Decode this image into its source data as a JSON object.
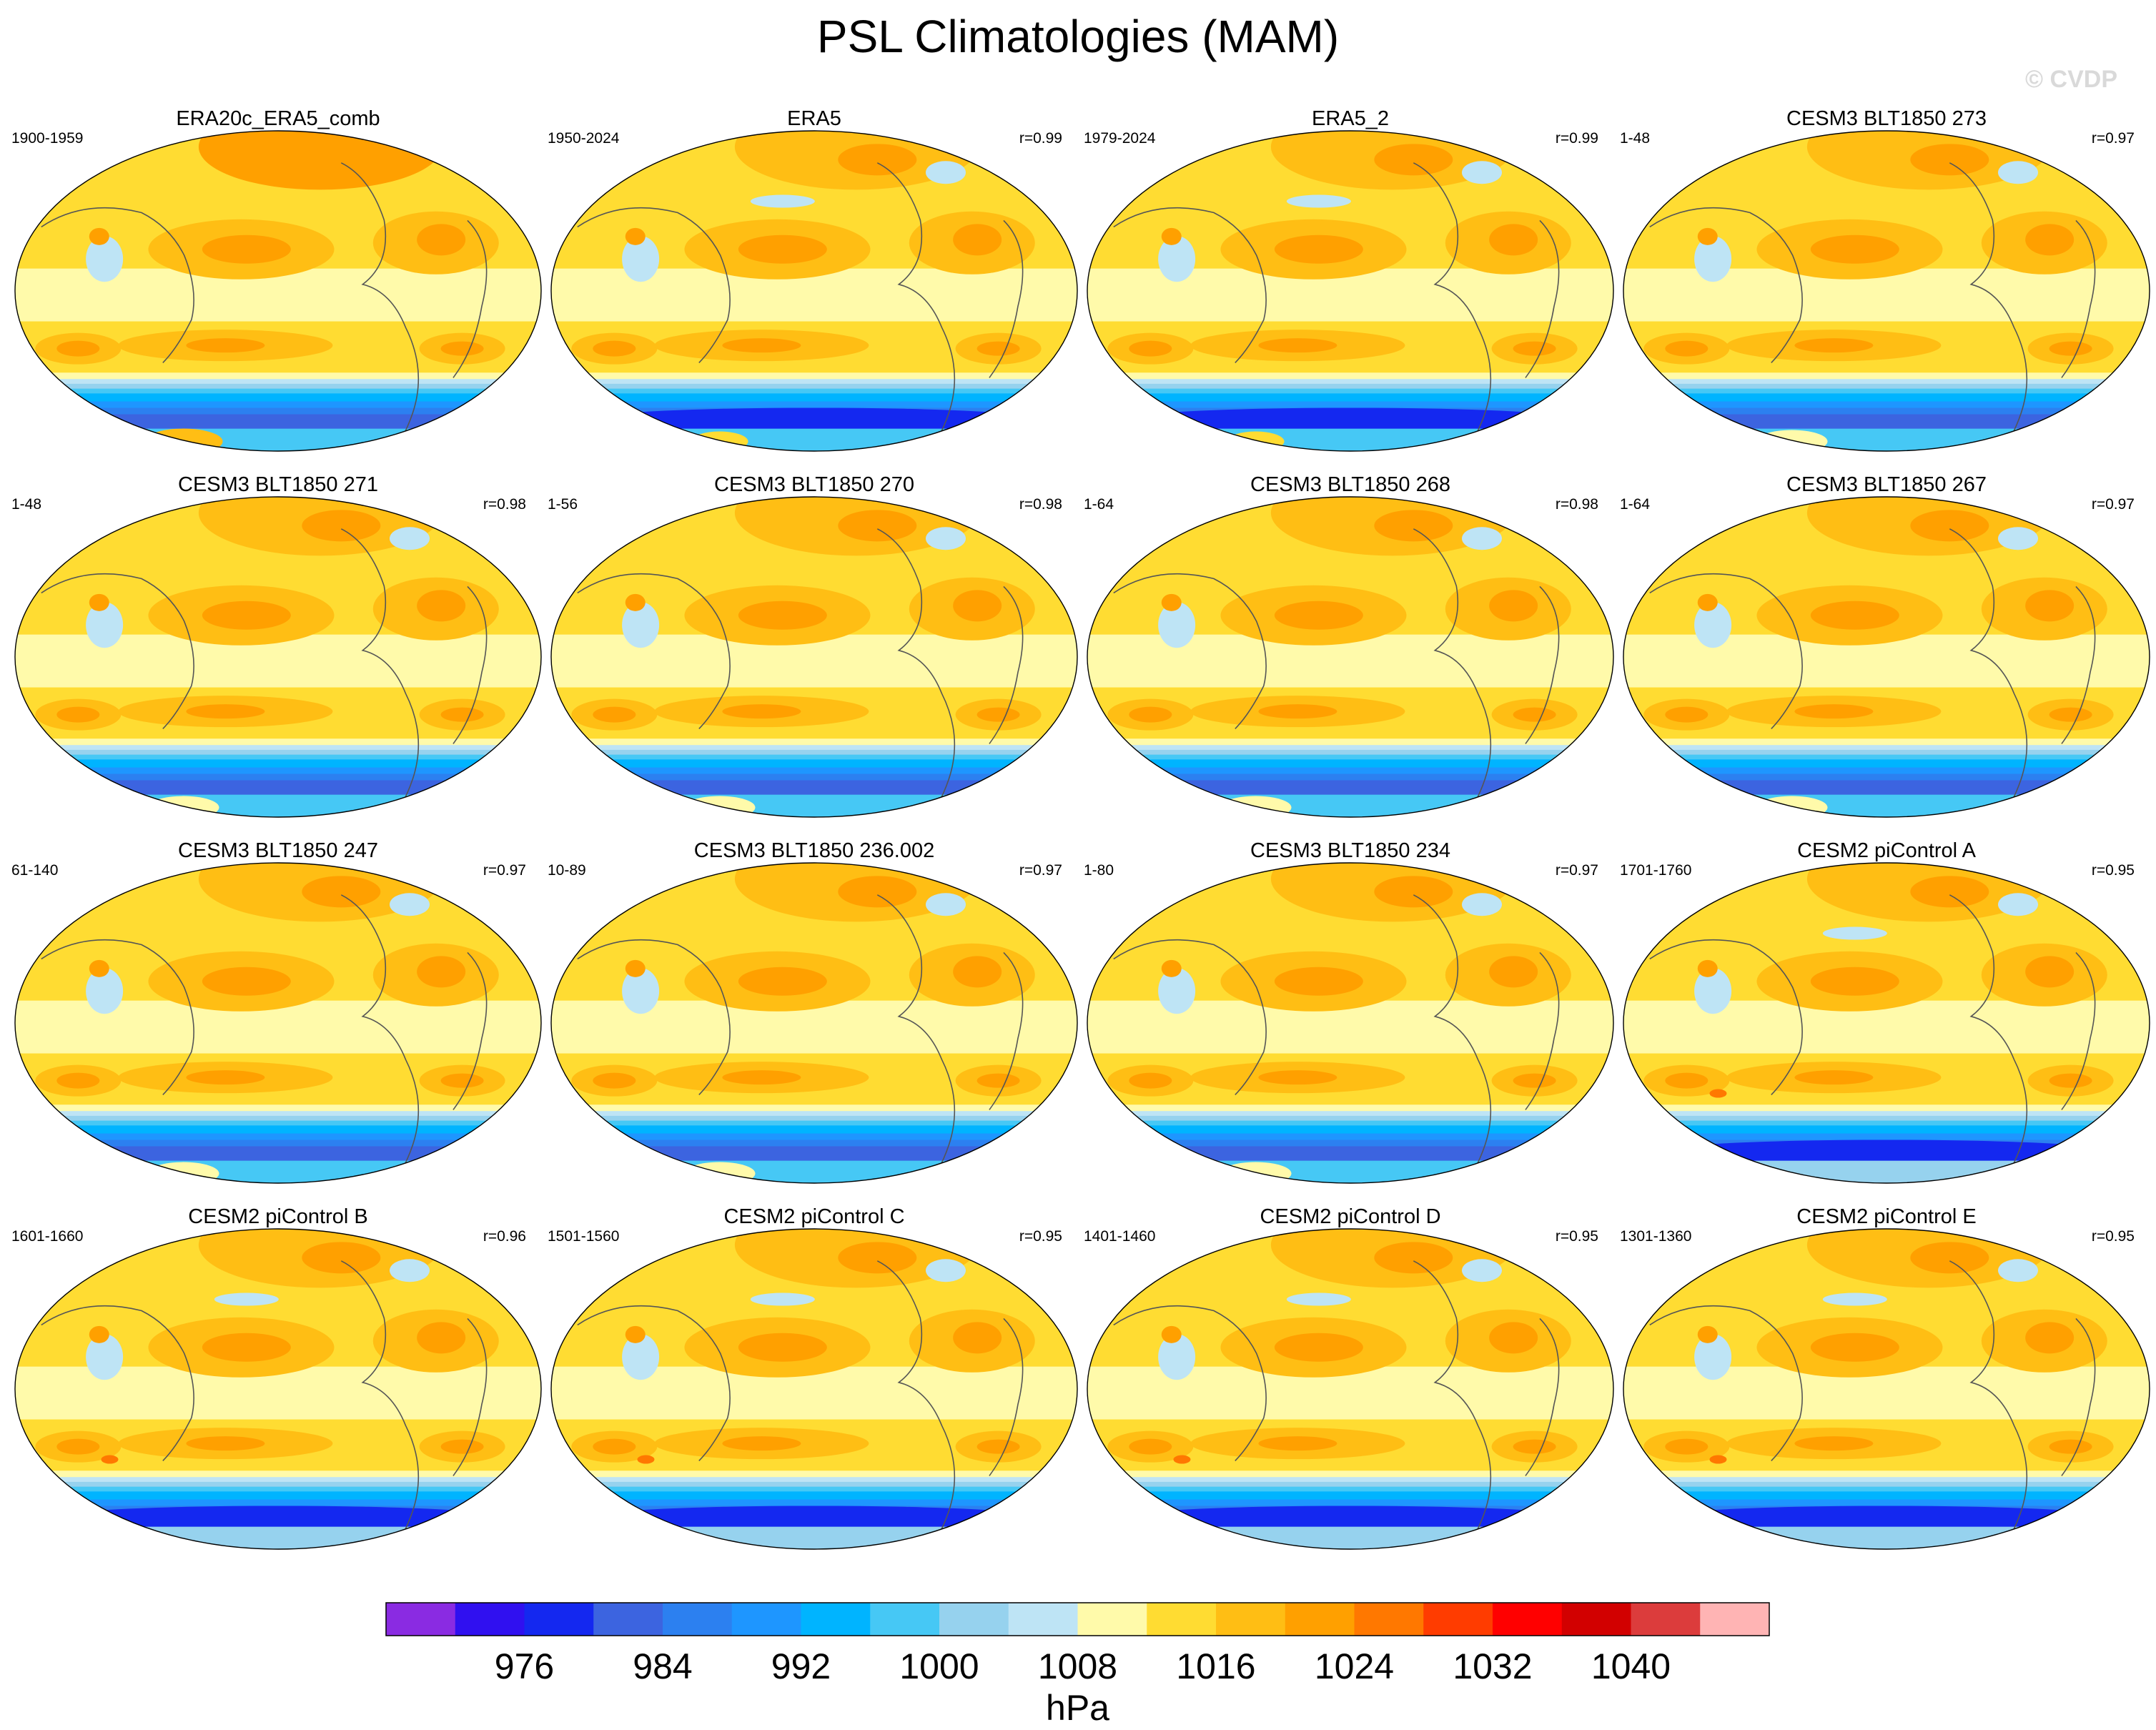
{
  "title": "PSL Climatologies (MAM)",
  "watermark": "© CVDP",
  "chart_data": {
    "type": "map-grid",
    "variable": "PSL",
    "season": "MAM",
    "units": "hPa",
    "panels": [
      {
        "name": "ERA20c_ERA5_comb",
        "years": "1900-1959",
        "r": "",
        "variant": "obs1"
      },
      {
        "name": "ERA5",
        "years": "1950-2024",
        "r": "r=0.99",
        "variant": "obs2"
      },
      {
        "name": "ERA5_2",
        "years": "1979-2024",
        "r": "r=0.99",
        "variant": "obs2"
      },
      {
        "name": "CESM3 BLT1850 273",
        "years": "1-48",
        "r": "r=0.97",
        "variant": "model"
      },
      {
        "name": "CESM3 BLT1850 271",
        "years": "1-48",
        "r": "r=0.98",
        "variant": "model"
      },
      {
        "name": "CESM3 BLT1850 270",
        "years": "1-56",
        "r": "r=0.98",
        "variant": "model"
      },
      {
        "name": "CESM3 BLT1850 268",
        "years": "1-64",
        "r": "r=0.98",
        "variant": "model"
      },
      {
        "name": "CESM3 BLT1850 267",
        "years": "1-64",
        "r": "r=0.97",
        "variant": "model"
      },
      {
        "name": "CESM3 BLT1850 247",
        "years": "61-140",
        "r": "r=0.97",
        "variant": "model"
      },
      {
        "name": "CESM3 BLT1850 236.002",
        "years": "10-89",
        "r": "r=0.97",
        "variant": "model"
      },
      {
        "name": "CESM3 BLT1850 234",
        "years": "1-80",
        "r": "r=0.97",
        "variant": "model"
      },
      {
        "name": "CESM2 piControl A",
        "years": "1701-1760",
        "r": "r=0.95",
        "variant": "cesm2"
      },
      {
        "name": "CESM2 piControl B",
        "years": "1601-1660",
        "r": "r=0.96",
        "variant": "cesm2"
      },
      {
        "name": "CESM2 piControl C",
        "years": "1501-1560",
        "r": "r=0.95",
        "variant": "cesm2"
      },
      {
        "name": "CESM2 piControl D",
        "years": "1401-1460",
        "r": "r=0.95",
        "variant": "cesm2"
      },
      {
        "name": "CESM2 piControl E",
        "years": "1301-1360",
        "r": "r=0.95",
        "variant": "cesm2"
      }
    ],
    "colorbar": {
      "colors": [
        "#8a2be2",
        "#3010f0",
        "#1428f0",
        "#3c64e0",
        "#2c80f0",
        "#1e96ff",
        "#00b4ff",
        "#46c8f5",
        "#96d2ee",
        "#bee4f5",
        "#fffaaa",
        "#ffdc32",
        "#ffbe14",
        "#ffa000",
        "#ff7800",
        "#ff3c00",
        "#ff0000",
        "#d20000",
        "#dc3c3c",
        "#ffb4b4"
      ],
      "tick_labels": [
        "976",
        "984",
        "992",
        "1000",
        "1008",
        "1016",
        "1024",
        "1032",
        "1040"
      ],
      "label": "hPa"
    }
  }
}
